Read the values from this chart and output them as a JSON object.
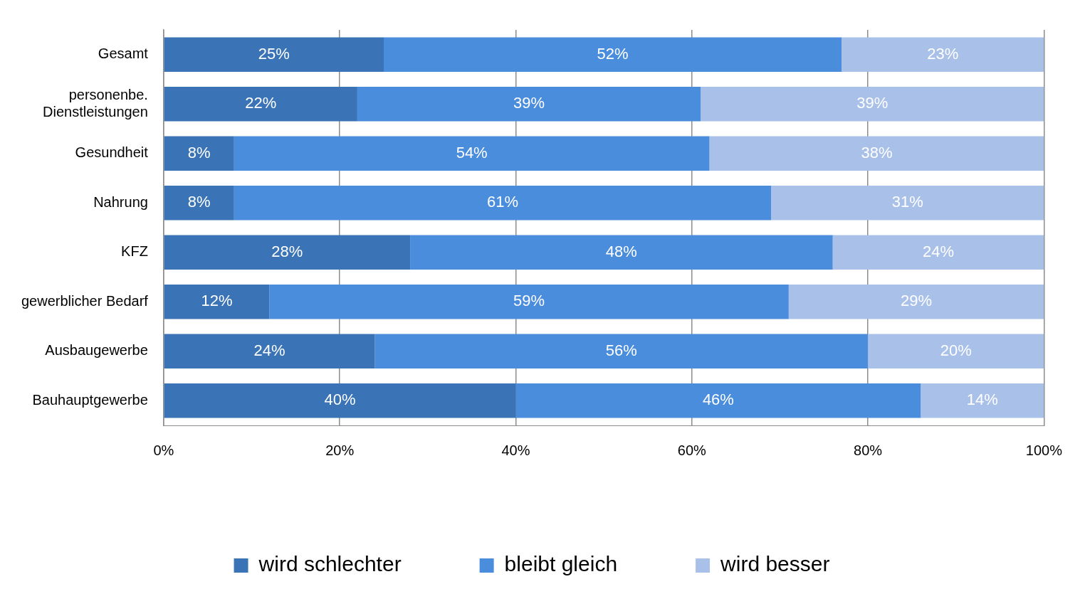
{
  "chart_data": {
    "type": "bar",
    "orientation": "horizontal",
    "stacked": true,
    "categories": [
      "Gesamt",
      "personenbe. Dienstleistungen",
      "Gesundheit",
      "Nahrung",
      "KFZ",
      "gewerblicher Bedarf",
      "Ausbaugewerbe",
      "Bauhauptgewerbe"
    ],
    "series": [
      {
        "name": "wird schlechter",
        "color": "#3a74b6",
        "values": [
          25,
          22,
          8,
          8,
          28,
          12,
          24,
          40
        ],
        "value_labels": [
          "25%",
          "22%",
          "8%",
          "8%",
          "28%",
          "12%",
          "24%",
          "40%"
        ]
      },
      {
        "name": "bleibt gleich",
        "color": "#4a8ddc",
        "values": [
          52,
          39,
          54,
          61,
          48,
          59,
          56,
          46
        ],
        "value_labels": [
          "52%",
          "39%",
          "54%",
          "61%",
          "48%",
          "59%",
          "56%",
          "46%"
        ]
      },
      {
        "name": "wird besser",
        "color": "#a9c1e8",
        "values": [
          23,
          39,
          38,
          31,
          24,
          29,
          20,
          14
        ],
        "value_labels": [
          "23%",
          "39%",
          "38%",
          "31%",
          "24%",
          "29%",
          "20%",
          "14%"
        ]
      }
    ],
    "xlim": [
      0,
      100
    ],
    "xticks": [
      {
        "value": 0,
        "label": "0%"
      },
      {
        "value": 20,
        "label": "20%"
      },
      {
        "value": 40,
        "label": "40%"
      },
      {
        "value": 60,
        "label": "60%"
      },
      {
        "value": 80,
        "label": "80%"
      },
      {
        "value": 100,
        "label": "100%"
      }
    ],
    "grid": "x",
    "legend": "bottom"
  }
}
